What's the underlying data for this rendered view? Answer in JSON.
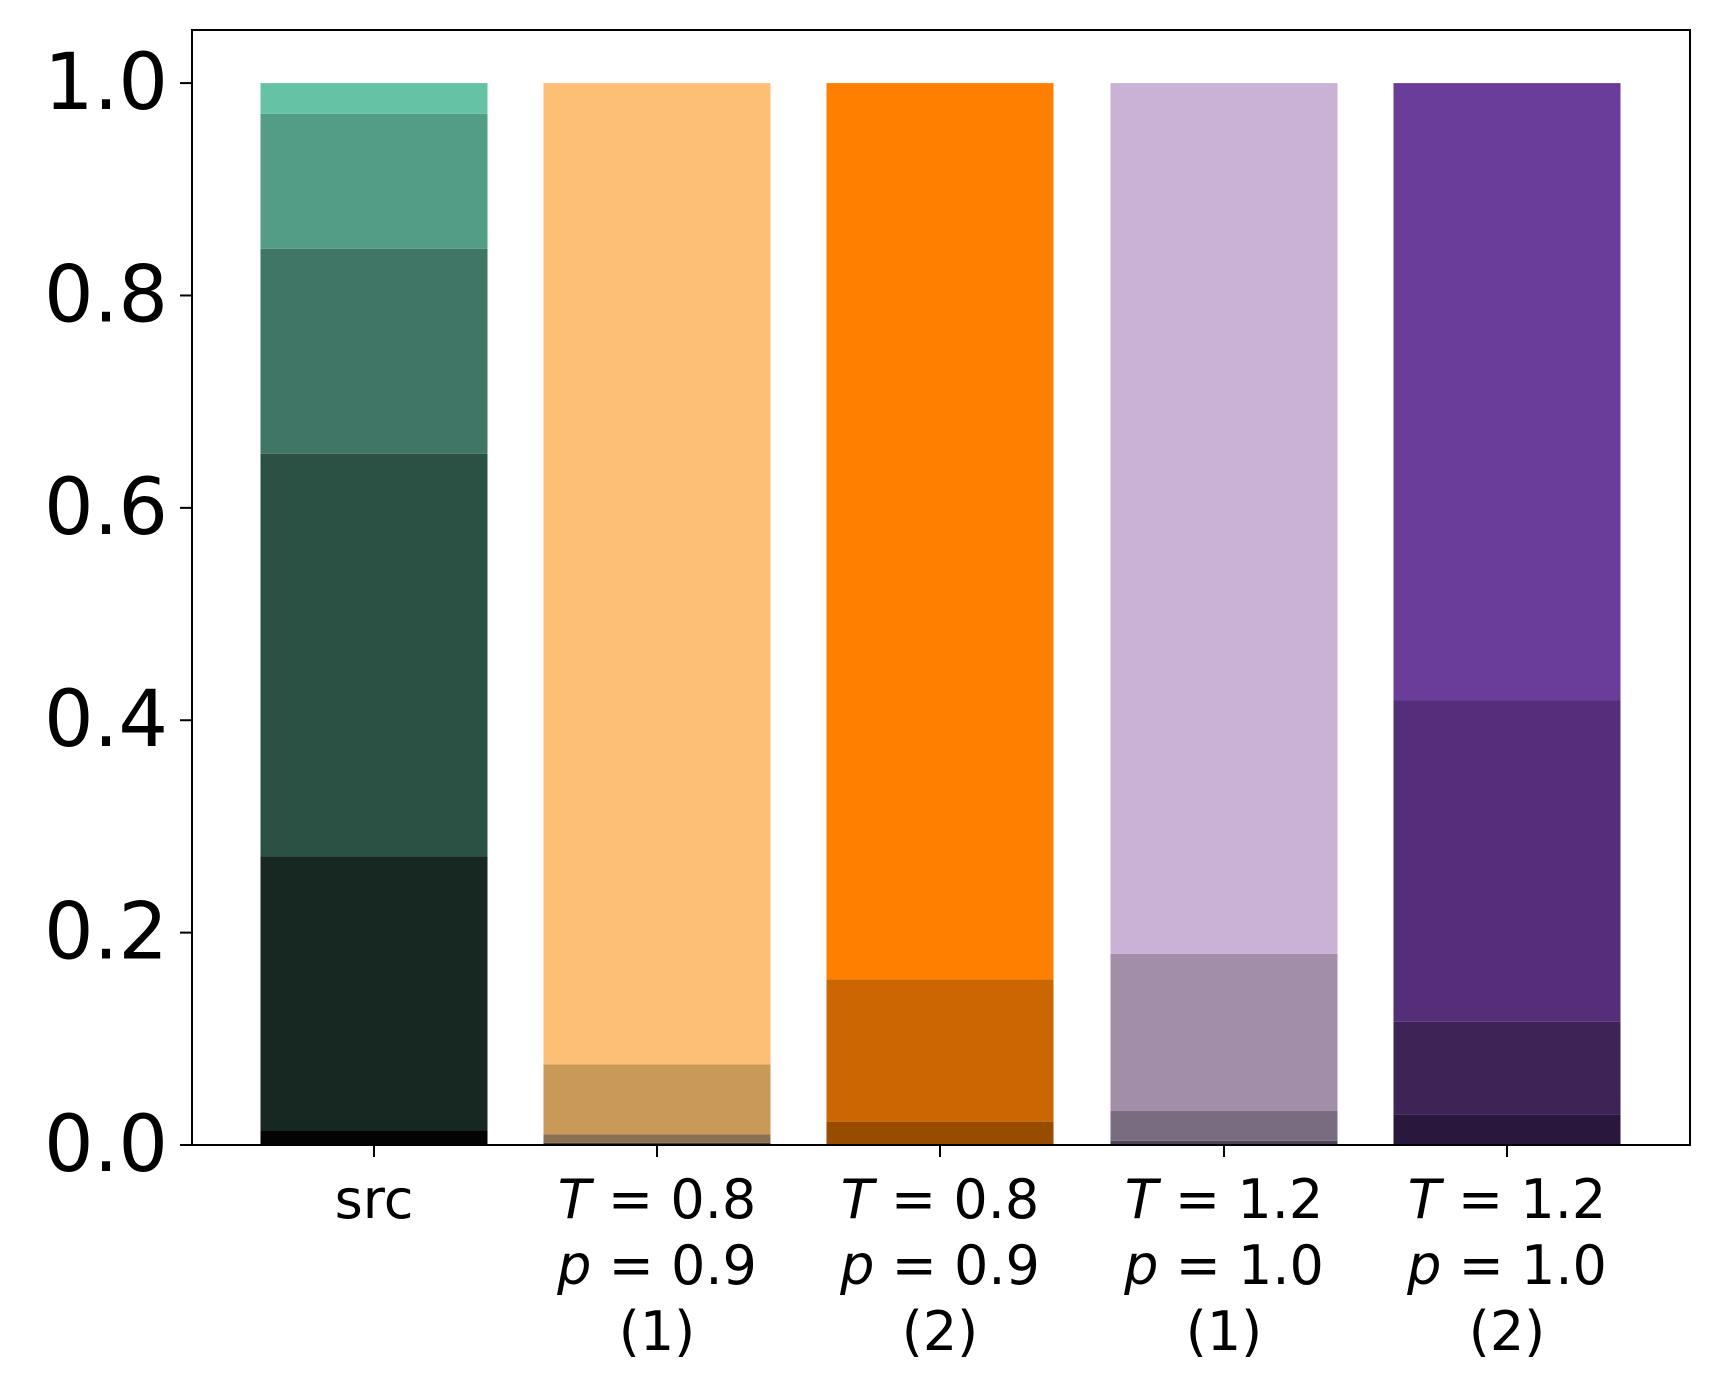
{
  "chart_data": {
    "type": "bar",
    "stacked": true,
    "categories": [
      {
        "lines": [
          {
            "text": "src"
          }
        ]
      },
      {
        "lines": [
          {
            "var": "T",
            "rest": " = 0.8"
          },
          {
            "var": "p",
            "rest": " = 0.9"
          },
          {
            "text": "(1)"
          }
        ]
      },
      {
        "lines": [
          {
            "var": "T",
            "rest": " = 0.8"
          },
          {
            "var": "p",
            "rest": " = 0.9"
          },
          {
            "text": "(2)"
          }
        ]
      },
      {
        "lines": [
          {
            "var": "T",
            "rest": " = 1.2"
          },
          {
            "var": "p",
            "rest": " = 1.0"
          },
          {
            "text": "(1)"
          }
        ]
      },
      {
        "lines": [
          {
            "var": "T",
            "rest": " = 1.2"
          },
          {
            "var": "p",
            "rest": " = 1.0"
          },
          {
            "text": "(2)"
          }
        ]
      }
    ],
    "bars": [
      {
        "segments": [
          {
            "value": 0.014,
            "color": "#020403"
          },
          {
            "value": 0.258,
            "color": "#172823"
          },
          {
            "value": 0.379,
            "color": "#2b5145"
          },
          {
            "value": 0.193,
            "color": "#3f7665"
          },
          {
            "value": 0.127,
            "color": "#539d86"
          },
          {
            "value": 0.029,
            "color": "#66c2a5"
          }
        ]
      },
      {
        "segments": [
          {
            "value": 0.002,
            "color": "#4a4030"
          },
          {
            "value": 0.008,
            "color": "#8a7050"
          },
          {
            "value": 0.066,
            "color": "#c99958"
          },
          {
            "value": 0.924,
            "color": "#fcbf75"
          }
        ]
      },
      {
        "segments": [
          {
            "value": 0.022,
            "color": "#974c00"
          },
          {
            "value": 0.134,
            "color": "#cb6600"
          },
          {
            "value": 0.844,
            "color": "#ff7f00"
          }
        ]
      },
      {
        "segments": [
          {
            "value": 0.004,
            "color": "#52475a"
          },
          {
            "value": 0.028,
            "color": "#7a6c80"
          },
          {
            "value": 0.148,
            "color": "#a28ea8"
          },
          {
            "value": 0.82,
            "color": "#cab2d6"
          }
        ]
      },
      {
        "segments": [
          {
            "value": 0.029,
            "color": "#29173e"
          },
          {
            "value": 0.087,
            "color": "#3e2357"
          },
          {
            "value": 0.303,
            "color": "#552e79"
          },
          {
            "value": 0.581,
            "color": "#6a3d9a"
          }
        ]
      }
    ],
    "yticks": [
      "0.0",
      "0.2",
      "0.4",
      "0.6",
      "0.8",
      "1.0"
    ],
    "ylim": [
      0,
      1.05
    ],
    "title": "",
    "xlabel": "",
    "ylabel": "",
    "grid": false,
    "legend": "none"
  }
}
